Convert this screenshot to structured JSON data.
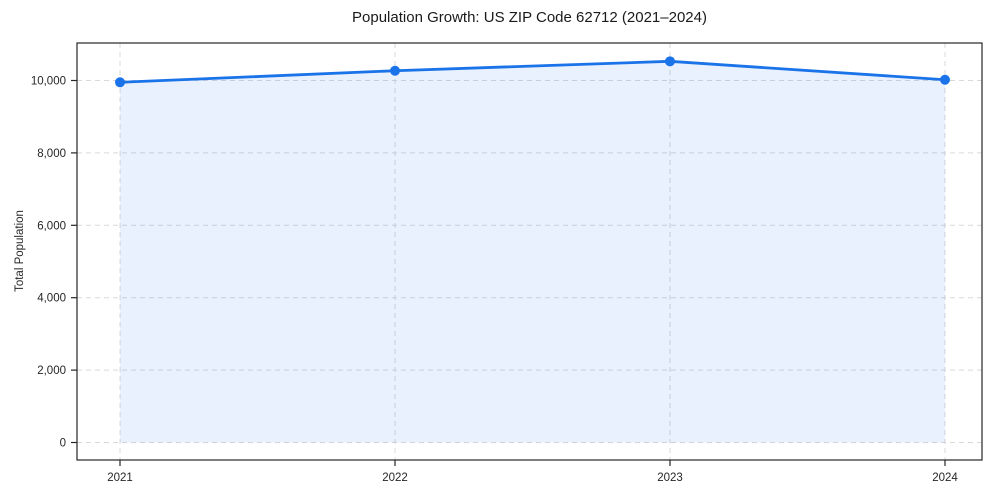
{
  "chart_data": {
    "type": "area",
    "title": "Population Growth: US ZIP Code 62712 (2021–2024)",
    "xlabel": "",
    "ylabel": "Total Population",
    "categories": [
      "2021",
      "2022",
      "2023",
      "2024"
    ],
    "series": [
      {
        "name": "Total Population",
        "values": [
          9950,
          10270,
          10530,
          10020
        ]
      }
    ],
    "yticks": [
      {
        "value": 0,
        "label": "0"
      },
      {
        "value": 2000,
        "label": "2,000"
      },
      {
        "value": 4000,
        "label": "4,000"
      },
      {
        "value": 6000,
        "label": "6,000"
      },
      {
        "value": 8000,
        "label": "8,000"
      },
      {
        "value": 10000,
        "label": "10,000"
      }
    ],
    "ylim": [
      0,
      11000
    ],
    "grid": true,
    "grid_style": "dashed",
    "legend_position": "none",
    "marker": "circle",
    "colors": {
      "line": "#1a73e8",
      "marker": "#1a73e8",
      "area_fill": "#1a73e8",
      "grid": "#d9d9d9",
      "spine": "#262626",
      "text": "#262626",
      "background": "#ffffff"
    }
  }
}
